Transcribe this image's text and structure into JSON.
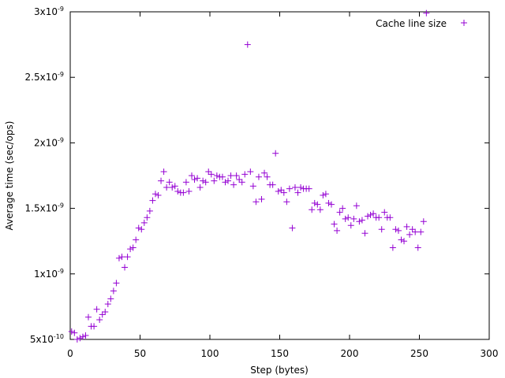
{
  "chart_data": {
    "type": "scatter",
    "title": "",
    "xlabel": "Step (bytes)",
    "ylabel": "Average time (sec/ops)",
    "xlim": [
      0,
      300
    ],
    "ylim": [
      5e-10,
      3e-09
    ],
    "x_ticks": [
      0,
      50,
      100,
      150,
      200,
      250,
      300
    ],
    "x_tick_labels": [
      "0",
      "50",
      "100",
      "150",
      "200",
      "250",
      "300"
    ],
    "y_ticks": [
      5e-10,
      1e-09,
      1.5e-09,
      2e-09,
      2.5e-09,
      3e-09
    ],
    "y_tick_labels": [
      {
        "mant": "5x10",
        "exp": "-10"
      },
      {
        "mant": "1x10",
        "exp": "-9"
      },
      {
        "mant": "1.5x10",
        "exp": "-9"
      },
      {
        "mant": "2x10",
        "exp": "-9"
      },
      {
        "mant": "2.5x10",
        "exp": "-9"
      },
      {
        "mant": "3x10",
        "exp": "-9"
      }
    ],
    "grid": false,
    "legend_position": "top-right",
    "marker_color": "#9400d3",
    "series": [
      {
        "name": "Cache line size",
        "marker": "plus",
        "x": [
          1,
          3,
          5,
          7,
          9,
          11,
          13,
          15,
          17,
          19,
          21,
          23,
          25,
          27,
          29,
          31,
          33,
          35,
          37,
          39,
          41,
          43,
          45,
          47,
          49,
          51,
          53,
          55,
          57,
          59,
          61,
          63,
          65,
          67,
          69,
          71,
          73,
          75,
          77,
          79,
          81,
          83,
          85,
          87,
          89,
          91,
          93,
          95,
          97,
          99,
          101,
          103,
          105,
          107,
          109,
          111,
          113,
          115,
          117,
          119,
          121,
          123,
          125,
          127,
          129,
          131,
          133,
          135,
          137,
          139,
          141,
          143,
          145,
          147,
          149,
          151,
          153,
          155,
          157,
          159,
          161,
          163,
          165,
          167,
          169,
          171,
          173,
          175,
          177,
          179,
          181,
          183,
          185,
          187,
          189,
          191,
          193,
          195,
          197,
          199,
          201,
          203,
          205,
          207,
          209,
          211,
          213,
          215,
          217,
          219,
          221,
          223,
          225,
          227,
          229,
          231,
          233,
          235,
          237,
          239,
          241,
          243,
          245,
          247,
          249,
          251,
          253,
          255
        ],
        "y": [
          5.6e-10,
          5.5e-10,
          5e-10,
          5.1e-10,
          5.2e-10,
          5.3e-10,
          6.7e-10,
          6e-10,
          6e-10,
          7.3e-10,
          6.5e-10,
          6.9e-10,
          7.1e-10,
          7.7e-10,
          8.1e-10,
          8.7e-10,
          9.3e-10,
          1.12e-09,
          1.13e-09,
          1.05e-09,
          1.13e-09,
          1.19e-09,
          1.2e-09,
          1.26e-09,
          1.35e-09,
          1.34e-09,
          1.39e-09,
          1.43e-09,
          1.48e-09,
          1.56e-09,
          1.61e-09,
          1.6e-09,
          1.71e-09,
          1.78e-09,
          1.66e-09,
          1.7e-09,
          1.66e-09,
          1.67e-09,
          1.63e-09,
          1.62e-09,
          1.62e-09,
          1.7e-09,
          1.63e-09,
          1.75e-09,
          1.72e-09,
          1.73e-09,
          1.66e-09,
          1.71e-09,
          1.7e-09,
          1.78e-09,
          1.76e-09,
          1.71e-09,
          1.75e-09,
          1.74e-09,
          1.74e-09,
          1.7e-09,
          1.71e-09,
          1.75e-09,
          1.68e-09,
          1.75e-09,
          1.72e-09,
          1.7e-09,
          1.76e-09,
          2.75e-09,
          1.78e-09,
          1.67e-09,
          1.55e-09,
          1.74e-09,
          1.57e-09,
          1.77e-09,
          1.74e-09,
          1.68e-09,
          1.68e-09,
          1.92e-09,
          1.63e-09,
          1.64e-09,
          1.62e-09,
          1.55e-09,
          1.65e-09,
          1.35e-09,
          1.66e-09,
          1.62e-09,
          1.66e-09,
          1.65e-09,
          1.65e-09,
          1.65e-09,
          1.49e-09,
          1.54e-09,
          1.53e-09,
          1.49e-09,
          1.6e-09,
          1.61e-09,
          1.54e-09,
          1.53e-09,
          1.38e-09,
          1.33e-09,
          1.47e-09,
          1.5e-09,
          1.42e-09,
          1.43e-09,
          1.37e-09,
          1.42e-09,
          1.52e-09,
          1.4e-09,
          1.41e-09,
          1.31e-09,
          1.44e-09,
          1.45e-09,
          1.46e-09,
          1.43e-09,
          1.43e-09,
          1.34e-09,
          1.47e-09,
          1.43e-09,
          1.43e-09,
          1.2e-09,
          1.34e-09,
          1.33e-09,
          1.26e-09,
          1.25e-09,
          1.36e-09,
          1.3e-09,
          1.34e-09,
          1.32e-09,
          1.2e-09,
          1.32e-09,
          1.4e-09,
          2.99e-09
        ]
      }
    ]
  }
}
